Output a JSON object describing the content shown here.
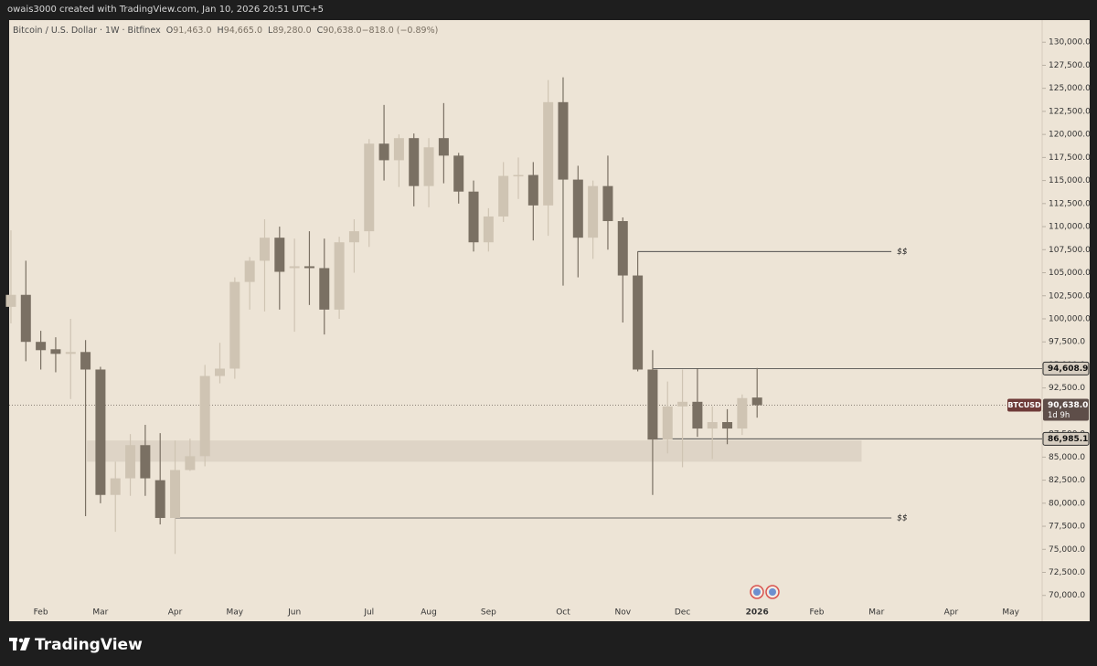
{
  "header": {
    "credit": "owais3000 created with TradingView.com, Jan 10, 2026 20:51 UTC+5"
  },
  "footer": {
    "brand": "TradingView"
  },
  "chart_data": {
    "type": "candlestick",
    "title": "Bitcoin / U.S. Dollar · 1W · Bitfinex",
    "legend_values": [
      {
        "key": "O",
        "text": "91,463.0"
      },
      {
        "key": "H",
        "text": "94,665.0"
      },
      {
        "key": "L",
        "text": "89,280.0"
      },
      {
        "key": "C",
        "text": "90,638.0"
      },
      {
        "key": "",
        "text": "−818.0 (−0.89%)"
      }
    ],
    "up_color": "#cfc4b3",
    "down_color": "#7a7063",
    "x": [
      0,
      1,
      2,
      3,
      4,
      5,
      6,
      7,
      8,
      9,
      10,
      11,
      12,
      13,
      14,
      15,
      16,
      17,
      18,
      19,
      20,
      21,
      22,
      23,
      24,
      25,
      26,
      27,
      28,
      29,
      30,
      31,
      32,
      33,
      34,
      35,
      36,
      37,
      38,
      39,
      40,
      41,
      42,
      43,
      44,
      45,
      46,
      47,
      48,
      49,
      50
    ],
    "open": [
      101300,
      102600,
      97500,
      96700,
      96200,
      96400,
      94500,
      80900,
      82700,
      86300,
      82500,
      78400,
      83600,
      85100,
      93800,
      94600,
      104000,
      106300,
      108800,
      105500,
      105700,
      105500,
      101000,
      108300,
      109500,
      119000,
      117200,
      119600,
      114400,
      119600,
      117700,
      113800,
      108300,
      111100,
      115500,
      115600,
      112300,
      123500,
      115100,
      108800,
      114400,
      110600,
      104700,
      94500,
      86900,
      90500,
      91000,
      88100,
      88800,
      88100,
      91463
    ],
    "high": [
      109600,
      106300,
      98700,
      98000,
      100000,
      97700,
      94800,
      84500,
      87500,
      88500,
      87600,
      86800,
      87000,
      95000,
      97400,
      104500,
      106700,
      110800,
      110000,
      108700,
      109500,
      108700,
      108900,
      110800,
      119500,
      123200,
      120000,
      120100,
      119600,
      123400,
      118000,
      115000,
      112000,
      117000,
      117500,
      117000,
      125900,
      126200,
      116600,
      115000,
      117700,
      111000,
      107300,
      96600,
      93200,
      94500,
      94600,
      90500,
      90200,
      91800,
      94665
    ],
    "low": [
      99500,
      95400,
      94500,
      94200,
      91300,
      78600,
      80000,
      76900,
      80800,
      80800,
      77700,
      74500,
      83500,
      84000,
      93000,
      93500,
      101000,
      100800,
      101000,
      98600,
      101500,
      98300,
      100000,
      105000,
      107800,
      115000,
      114300,
      112200,
      112100,
      114700,
      112500,
      107300,
      107300,
      110500,
      113000,
      108500,
      109000,
      103600,
      104500,
      106500,
      107500,
      99600,
      94300,
      80900,
      85400,
      83900,
      87200,
      84800,
      86400,
      87400,
      89280
    ],
    "close": [
      102600,
      97500,
      96600,
      96200,
      96400,
      94500,
      80900,
      82700,
      86300,
      82700,
      78400,
      83600,
      85100,
      93800,
      94600,
      104000,
      106300,
      108800,
      105100,
      105700,
      105500,
      101000,
      108300,
      109500,
      119000,
      117200,
      119600,
      114400,
      118600,
      117700,
      113800,
      108300,
      111100,
      115500,
      115600,
      112300,
      123500,
      115100,
      108800,
      114400,
      110600,
      104700,
      94500,
      86900,
      90500,
      91000,
      88100,
      88800,
      88100,
      91400,
      90638
    ],
    "xlim": [
      -0.12,
      69.1
    ],
    "xticks": [
      {
        "value": 2,
        "label": "Feb"
      },
      {
        "value": 6,
        "label": "Mar"
      },
      {
        "value": 11,
        "label": "Apr"
      },
      {
        "value": 15,
        "label": "May"
      },
      {
        "value": 19,
        "label": "Jun"
      },
      {
        "value": 24,
        "label": "Jul"
      },
      {
        "value": 28,
        "label": "Aug"
      },
      {
        "value": 32,
        "label": "Sep"
      },
      {
        "value": 37,
        "label": "Oct"
      },
      {
        "value": 41,
        "label": "Nov"
      },
      {
        "value": 45,
        "label": "Dec"
      },
      {
        "value": 50,
        "label": "2026"
      },
      {
        "value": 54,
        "label": "Feb"
      },
      {
        "value": 58,
        "label": "Mar"
      },
      {
        "value": 63,
        "label": "Apr"
      },
      {
        "value": 67,
        "label": "May"
      }
    ],
    "ylim": [
      67200,
      132400
    ],
    "yticks": [
      {
        "value": 70000,
        "label": "70,000.0"
      },
      {
        "value": 72500,
        "label": "72,500.0"
      },
      {
        "value": 75000,
        "label": "75,000.0"
      },
      {
        "value": 77500,
        "label": "77,500.0"
      },
      {
        "value": 80000,
        "label": "80,000.0"
      },
      {
        "value": 82500,
        "label": "82,500.0"
      },
      {
        "value": 85000,
        "label": "85,000.0"
      },
      {
        "value": 87500,
        "label": "87,500.0"
      },
      {
        "value": 90000,
        "label": "90,000.0"
      },
      {
        "value": 92500,
        "label": "92,500.0"
      },
      {
        "value": 95000,
        "label": "95,000.0"
      },
      {
        "value": 97500,
        "label": "97,500.0"
      },
      {
        "value": 100000,
        "label": "100,000.0"
      },
      {
        "value": 102500,
        "label": "102,500.0"
      },
      {
        "value": 105000,
        "label": "105,000.0"
      },
      {
        "value": 107500,
        "label": "107,500.0"
      },
      {
        "value": 110000,
        "label": "110,000.0"
      },
      {
        "value": 112500,
        "label": "112,500.0"
      },
      {
        "value": 115000,
        "label": "115,000.0"
      },
      {
        "value": 117500,
        "label": "117,500.0"
      },
      {
        "value": 120000,
        "label": "120,000.0"
      },
      {
        "value": 122500,
        "label": "122,500.0"
      },
      {
        "value": 125000,
        "label": "125,000.0"
      },
      {
        "value": 127500,
        "label": "127,500.0"
      },
      {
        "value": 130000,
        "label": "130,000.0"
      }
    ],
    "zone": {
      "low": 84500,
      "high": 86800,
      "from": 5.1,
      "to": 57
    },
    "liquidity_lines": [
      {
        "value": 107300,
        "from": 42,
        "to": 59,
        "label": "$$"
      },
      {
        "value": 78400,
        "from": 11,
        "to": 59,
        "label": "$$"
      }
    ],
    "levels": [
      {
        "value": 94608.9,
        "from": 43,
        "label": "94,608.9"
      },
      {
        "value": 86985.1,
        "from": 42.8,
        "label": "86,985.1"
      }
    ],
    "last": {
      "value": 90638,
      "label": "90,638.0",
      "symbol": "BTCUSD",
      "countdown": "1d 9h"
    }
  }
}
